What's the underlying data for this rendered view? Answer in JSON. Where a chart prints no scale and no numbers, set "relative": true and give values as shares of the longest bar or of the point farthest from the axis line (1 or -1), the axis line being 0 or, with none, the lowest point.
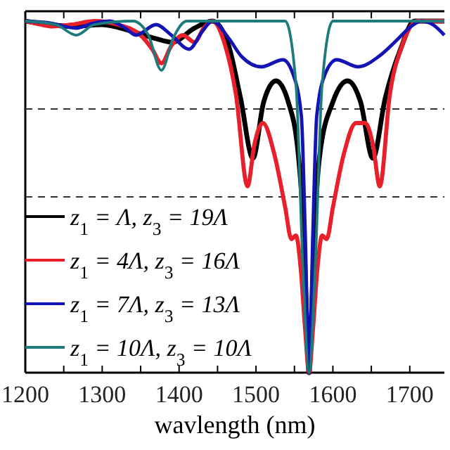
{
  "chart_data": {
    "type": "line",
    "relative": true,
    "xlabel": "wavlength (nm)",
    "xlim": [
      1200,
      1745
    ],
    "xticks": [
      1200,
      {
        "value": 1250,
        "label": null
      },
      1300,
      {
        "value": 1350,
        "label": null
      },
      1400,
      {
        "value": 1450,
        "label": null
      },
      1500,
      {
        "value": 1550,
        "label": null
      },
      1600,
      {
        "value": 1650,
        "label": null
      },
      1700
    ],
    "legend": "bottom left",
    "line_style": "solid",
    "marker": "none",
    "ref_lines": [
      {
        "axis": "y",
        "value": 0.75,
        "color": "#333333",
        "line_style": "dashed"
      },
      {
        "axis": "y",
        "value": 0.5,
        "color": "#333333",
        "line_style": "dashed"
      }
    ],
    "series": [
      {
        "name": "z$_{1}$ = Λ, z$_{3}$ = 19Λ",
        "color": "#000000",
        "x": [
          1200,
          1230,
          1260,
          1300,
          1340,
          1370,
          1391,
          1420,
          1443,
          1463,
          1480,
          1496,
          1510,
          1526,
          1542,
          1555,
          1562,
          1566,
          1569,
          1572,
          1576,
          1583,
          1600,
          1619,
          1636,
          1652,
          1668,
          1688,
          1706,
          1745
        ],
        "values": [
          1,
          0.99,
          0.985,
          0.99,
          0.97,
          0.95,
          0.94,
          0.98,
          1,
          0.94,
          0.78,
          0.61,
          0.77,
          0.83,
          0.77,
          0.62,
          0.4,
          0.15,
          0,
          0.15,
          0.4,
          0.62,
          0.77,
          0.83,
          0.77,
          0.61,
          0.78,
          0.92,
          1,
          1
        ]
      },
      {
        "name": "z$_{1}$ = 4Λ, z$_{3}$ = 16Λ",
        "color": "#e8202a",
        "x": [
          1200,
          1220,
          1235,
          1260,
          1290,
          1320,
          1350,
          1365,
          1377,
          1390,
          1405,
          1420,
          1432,
          1443,
          1460,
          1474,
          1489,
          1498,
          1509,
          1524,
          1538,
          1546,
          1552,
          1558,
          1564,
          1569,
          1574,
          1580,
          1586,
          1592,
          1600,
          1614,
          1630,
          1642,
          1652,
          1661,
          1674,
          1690,
          1710,
          1745
        ],
        "values": [
          1,
          0.99,
          0.985,
          0.99,
          1,
          0.99,
          0.96,
          0.92,
          0.88,
          0.93,
          0.96,
          0.94,
          0.98,
          1,
          0.93,
          0.79,
          0.53,
          0.65,
          0.71,
          0.62,
          0.47,
          0.38,
          0.39,
          0.3,
          0.12,
          0,
          0.12,
          0.3,
          0.39,
          0.38,
          0.47,
          0.62,
          0.71,
          0.71,
          0.65,
          0.53,
          0.79,
          0.93,
          1,
          1
        ]
      },
      {
        "name": "z$_{1}$ = 7Λ, z$_{3}$ = 13Λ",
        "color": "#1414b4",
        "x": [
          1200,
          1230,
          1266,
          1290,
          1310,
          1330,
          1344,
          1370,
          1390,
          1413,
          1430,
          1443,
          1465,
          1481,
          1507,
          1535,
          1548,
          1559,
          1564,
          1569,
          1574,
          1579,
          1590,
          1605,
          1633,
          1660,
          1685,
          1699,
          1715,
          1730,
          1745
        ],
        "values": [
          1,
          0.995,
          0.98,
          0.995,
          1,
          0.98,
          0.96,
          0.99,
          0.96,
          0.92,
          0.97,
          1,
          0.95,
          0.9,
          0.87,
          0.89,
          0.85,
          0.73,
          0.4,
          0,
          0.4,
          0.73,
          0.85,
          0.89,
          0.87,
          0.9,
          0.95,
          0.98,
          1,
          0.99,
          0.96
        ]
      },
      {
        "name": "z$_{1}$ = 10Λ, z$_{3}$ = 10Λ",
        "color": "#1e7b7b",
        "x": [
          1200,
          1240,
          1266,
          1290,
          1340,
          1360,
          1377,
          1392,
          1410,
          1538,
          1552,
          1561,
          1569,
          1577,
          1586,
          1600,
          1745
        ],
        "values": [
          1,
          0.99,
          0.96,
          0.99,
          1,
          0.96,
          0.86,
          0.95,
          1,
          1,
          0.82,
          0.3,
          0,
          0.3,
          0.82,
          1,
          1
        ]
      }
    ]
  }
}
